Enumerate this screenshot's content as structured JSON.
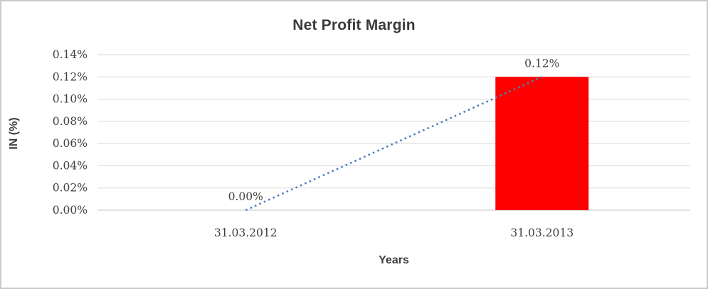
{
  "chart": {
    "title": "Net Profit Margin",
    "x_axis_title": "Years",
    "y_axis_title": "IN (%)"
  },
  "chart_data": {
    "type": "bar",
    "title": "Net Profit Margin",
    "xlabel": "Years",
    "ylabel": "IN (%)",
    "categories": [
      "31.03.2012",
      "31.03.2013"
    ],
    "series": [
      {
        "name": "Net Profit Margin",
        "values": [
          0.0,
          0.12
        ],
        "unit": "%",
        "color": "#ff0000",
        "data_labels": [
          "0.00%",
          "0.12%"
        ]
      }
    ],
    "trendline": {
      "type": "linear",
      "style": "dotted",
      "color": "#4f81bd",
      "from_value": 0.0,
      "to_value": 0.12
    },
    "ylim": [
      0,
      0.14
    ],
    "y_tick_step": 0.02,
    "y_tick_labels": [
      "0.00%",
      "0.02%",
      "0.04%",
      "0.06%",
      "0.08%",
      "0.10%",
      "0.12%",
      "0.14%"
    ],
    "grid": "horizontal",
    "legend": "none",
    "colors": {
      "grid": "#d9d9d9",
      "axis_line": "#c6c6c6",
      "tick_text": "#3f3f3f",
      "label_text": "#3f3f3f",
      "title_text": "#3a3a3a"
    }
  }
}
